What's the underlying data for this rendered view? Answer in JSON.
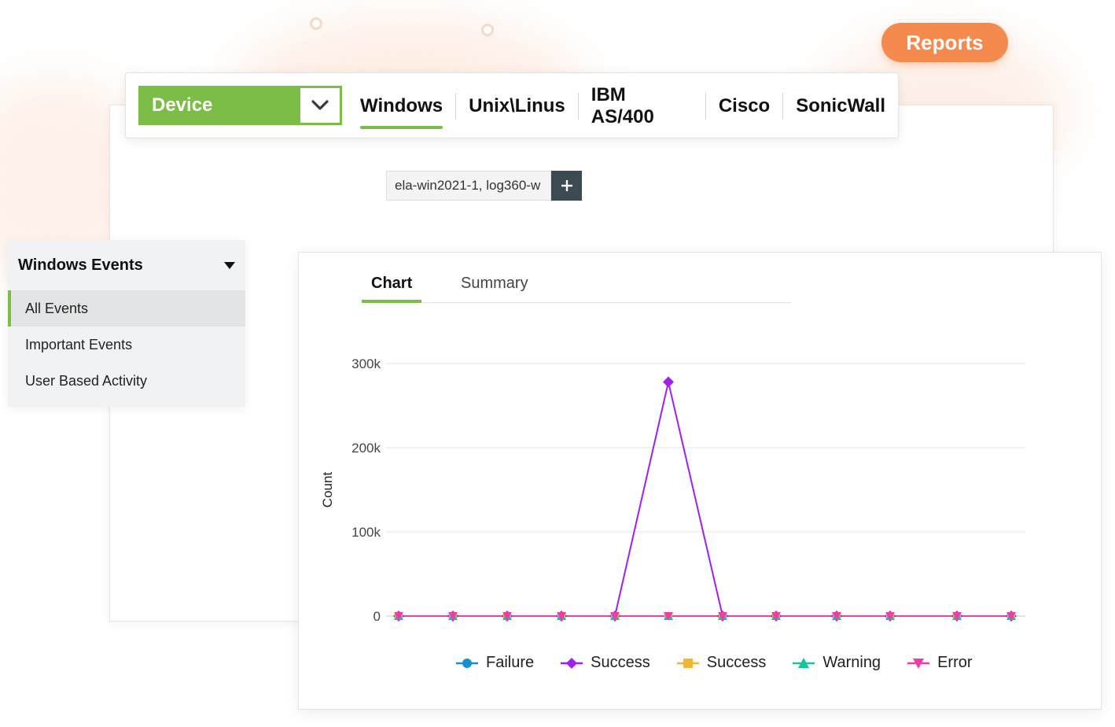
{
  "header": {
    "reports_label": "Reports"
  },
  "device_bar": {
    "selector_label": "Device",
    "tabs": [
      {
        "label": "Windows",
        "active": true
      },
      {
        "label": "Unix\\Linus",
        "active": false
      },
      {
        "label": "IBM AS/400",
        "active": false
      },
      {
        "label": "Cisco",
        "active": false
      },
      {
        "label": "SonicWall",
        "active": false
      }
    ]
  },
  "filter": {
    "value": "ela-win2021-1, log360-w",
    "add_icon": "plus-icon"
  },
  "events": {
    "title": "Windows Events",
    "items": [
      {
        "label": "All Events",
        "active": true
      },
      {
        "label": "Important Events",
        "active": false
      },
      {
        "label": "User Based Activity",
        "active": false
      }
    ]
  },
  "chart_tabs": {
    "chart_label": "Chart",
    "summary_label": "Summary"
  },
  "colors": {
    "accent": "#7cbd48",
    "reports": "#f58a4f"
  },
  "chart_data": {
    "type": "line",
    "ylabel": "Count",
    "ylim": [
      0,
      300000
    ],
    "yticks": [
      {
        "value": 0,
        "label": "0"
      },
      {
        "value": 100000,
        "label": "100k"
      },
      {
        "value": 200000,
        "label": "200k"
      },
      {
        "value": 300000,
        "label": "300k"
      }
    ],
    "grid": true,
    "legend_position": "bottom",
    "x": [
      1,
      2,
      3,
      4,
      5,
      6,
      7,
      8,
      9,
      10,
      11,
      12
    ],
    "series": [
      {
        "name": "Failure",
        "color": "#1a8fd0",
        "marker": "circle",
        "values": [
          0,
          0,
          0,
          0,
          0,
          0,
          0,
          0,
          0,
          0,
          0,
          0
        ]
      },
      {
        "name": "Success",
        "color": "#a020f0",
        "marker": "diamond",
        "values": [
          0,
          0,
          0,
          0,
          0,
          278000,
          0,
          0,
          0,
          0,
          0,
          0
        ]
      },
      {
        "name": "Success",
        "color": "#f2b632",
        "marker": "square",
        "values": [
          0,
          0,
          0,
          0,
          0,
          0,
          0,
          0,
          0,
          0,
          0,
          0
        ]
      },
      {
        "name": "Warning",
        "color": "#16c59a",
        "marker": "triangle-up",
        "values": [
          0,
          0,
          0,
          0,
          0,
          0,
          0,
          0,
          0,
          0,
          0,
          0
        ]
      },
      {
        "name": "Error",
        "color": "#ee3fa8",
        "marker": "triangle-down",
        "values": [
          0,
          0,
          0,
          0,
          0,
          0,
          0,
          0,
          0,
          0,
          0,
          0
        ]
      }
    ]
  }
}
